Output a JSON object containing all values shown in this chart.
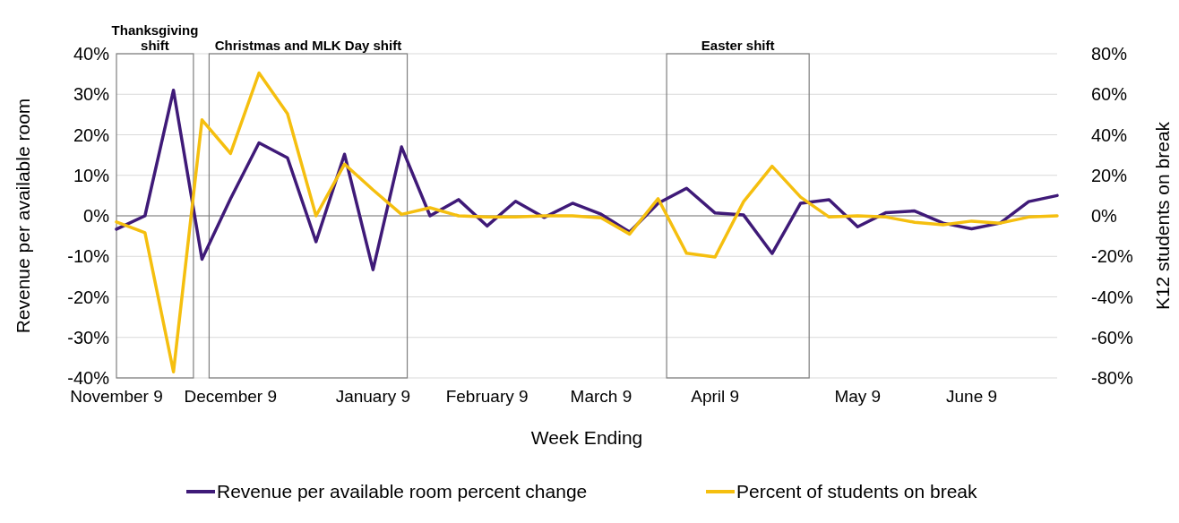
{
  "chart_data": {
    "type": "line",
    "xlabel": "Week Ending",
    "ylabel": "Revenue per available room",
    "y2label": "K12 students on break",
    "categories": [
      "November 9",
      null,
      null,
      null,
      "December 9",
      null,
      null,
      null,
      null,
      "January 9",
      null,
      null,
      null,
      "February 9",
      null,
      null,
      null,
      "March 9",
      null,
      null,
      null,
      "April 9",
      null,
      null,
      null,
      null,
      "May 9",
      null,
      null,
      null,
      "June 9",
      null,
      null,
      null
    ],
    "ylim": [
      -40,
      40
    ],
    "yticks": [
      {
        "value": -40,
        "label": "-40%"
      },
      {
        "value": -30,
        "label": "-30%"
      },
      {
        "value": -20,
        "label": "-20%"
      },
      {
        "value": -10,
        "label": "-10%"
      },
      {
        "value": 0,
        "label": "0%"
      },
      {
        "value": 10,
        "label": "10%"
      },
      {
        "value": 20,
        "label": "20%"
      },
      {
        "value": 30,
        "label": "30%"
      },
      {
        "value": 40,
        "label": "40%"
      }
    ],
    "y2lim": [
      -80,
      80
    ],
    "y2ticks": [
      {
        "value": -80,
        "label": "-80%"
      },
      {
        "value": -60,
        "label": "-60%"
      },
      {
        "value": -40,
        "label": "-40%"
      },
      {
        "value": -20,
        "label": "-20%"
      },
      {
        "value": 0,
        "label": "0%"
      },
      {
        "value": 20,
        "label": "20%"
      },
      {
        "value": 40,
        "label": "40%"
      },
      {
        "value": 60,
        "label": "60%"
      },
      {
        "value": 80,
        "label": "80%"
      }
    ],
    "grid": "y",
    "legend": "bottom",
    "marker": "none",
    "line_style": "solid",
    "annotations": [
      "Thanksgiving shift",
      "Christmas and MLK Day shift",
      "Easter shift"
    ],
    "series": [
      {
        "name": "Revenue per available room percent change",
        "color": "#3f1a78",
        "values": [
          -3.3,
          0,
          31,
          -10.7,
          4.2,
          18,
          14.3,
          -6.4,
          15.2,
          -13.3,
          17,
          0,
          4,
          -2.5,
          3.6,
          -0.4,
          3.1,
          0.4,
          -4,
          3.1,
          6.8,
          0.7,
          0.2,
          -9.3,
          3.1,
          4,
          -2.7,
          0.8,
          1.2,
          -1.8,
          -3.2,
          -1.8,
          3.5,
          5
        ]
      },
      {
        "name": "Percent of students on break",
        "color": "#f5bf0f",
        "axis": "y2",
        "values": [
          -3,
          -8.3,
          -77,
          47.4,
          30.8,
          70.5,
          50.4,
          0,
          25.5,
          12.8,
          0.7,
          4,
          0,
          -0.6,
          -0.6,
          0,
          0,
          -1,
          -9,
          8.5,
          -18.5,
          -20.3,
          7,
          24.5,
          9.2,
          -0.6,
          0,
          -0.6,
          -3.2,
          -4.4,
          -2.6,
          -3.6,
          -0.6,
          0
        ]
      }
    ]
  }
}
